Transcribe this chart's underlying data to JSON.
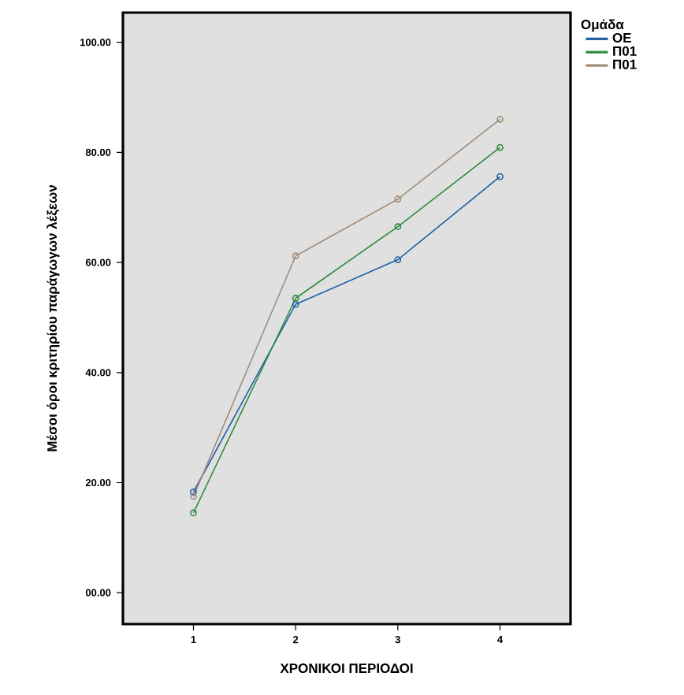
{
  "chart_data": {
    "type": "line",
    "xlabel": "ΧΡΟΝΙΚΟΙ ΠΕΡΙΟΔΟΙ",
    "ylabel": "Μέσοι όροι κριτηρίου παράγωγων λέξεων",
    "legend_title": "Ομάδα",
    "categories": [
      "1",
      "2",
      "3",
      "4"
    ],
    "series": [
      {
        "name": "ΟΕ",
        "color": "#1f5fa6",
        "values": [
          18.3,
          52.4,
          60.5,
          75.6
        ]
      },
      {
        "name": "Π01",
        "color": "#2e8b3e",
        "values": [
          14.5,
          53.5,
          66.5,
          80.9
        ]
      },
      {
        "name": "Π01",
        "color": "#a08c78",
        "values": [
          17.5,
          61.2,
          71.5,
          86.0
        ]
      }
    ],
    "ylim": [
      -5.7,
      105.4
    ],
    "yticks": [
      {
        "value": 0,
        "label": "00.00"
      },
      {
        "value": 20,
        "label": "20.00"
      },
      {
        "value": 40,
        "label": "40.00"
      },
      {
        "value": 60,
        "label": "60.00"
      },
      {
        "value": 80,
        "label": "80.00"
      },
      {
        "value": 100,
        "label": "100.00"
      }
    ],
    "legend": "top right",
    "marker": "circle",
    "line_style": "solid",
    "grid": false
  }
}
